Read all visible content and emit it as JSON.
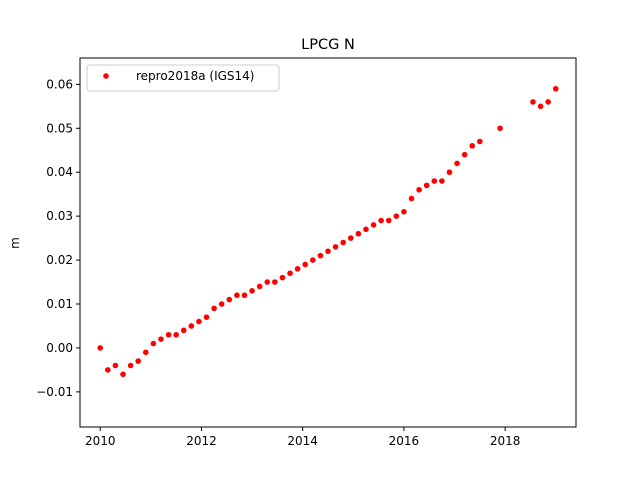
{
  "chart_data": {
    "type": "scatter",
    "title": "LPCG N",
    "xlabel": "",
    "ylabel": "m",
    "xlim": [
      2009.6,
      2019.4
    ],
    "ylim": [
      -0.018,
      0.066
    ],
    "xticks": [
      2010,
      2012,
      2014,
      2016,
      2018
    ],
    "xtick_labels": [
      "2010",
      "2012",
      "2014",
      "2016",
      "2018"
    ],
    "yticks": [
      -0.01,
      0.0,
      0.01,
      0.02,
      0.03,
      0.04,
      0.05,
      0.06
    ],
    "ytick_labels": [
      "−0.01",
      "0.00",
      "0.01",
      "0.02",
      "0.03",
      "0.04",
      "0.05",
      "0.06"
    ],
    "grid": false,
    "legend_position": "upper-left",
    "series": [
      {
        "name": "repro2018a (IGS14)",
        "color": "#ff0000",
        "marker": "circle",
        "x": [
          2010.0,
          2010.15,
          2010.3,
          2010.45,
          2010.6,
          2010.75,
          2010.9,
          2011.05,
          2011.2,
          2011.35,
          2011.5,
          2011.65,
          2011.8,
          2011.95,
          2012.1,
          2012.25,
          2012.4,
          2012.55,
          2012.7,
          2012.85,
          2013.0,
          2013.15,
          2013.3,
          2013.45,
          2013.6,
          2013.75,
          2013.9,
          2014.05,
          2014.2,
          2014.35,
          2014.5,
          2014.65,
          2014.8,
          2014.95,
          2015.1,
          2015.25,
          2015.4,
          2015.55,
          2015.7,
          2015.85,
          2016.0,
          2016.15,
          2016.3,
          2016.45,
          2016.6,
          2016.75,
          2016.9,
          2017.05,
          2017.2,
          2017.35,
          2017.5,
          2017.9,
          2018.55,
          2018.7,
          2018.85,
          2019.0
        ],
        "y": [
          0.0,
          -0.005,
          -0.004,
          -0.006,
          -0.004,
          -0.003,
          -0.001,
          0.001,
          0.002,
          0.003,
          0.003,
          0.004,
          0.005,
          0.006,
          0.007,
          0.009,
          0.01,
          0.011,
          0.012,
          0.012,
          0.013,
          0.014,
          0.015,
          0.015,
          0.016,
          0.017,
          0.018,
          0.019,
          0.02,
          0.021,
          0.022,
          0.023,
          0.024,
          0.025,
          0.026,
          0.027,
          0.028,
          0.029,
          0.029,
          0.03,
          0.031,
          0.034,
          0.036,
          0.037,
          0.038,
          0.038,
          0.04,
          0.042,
          0.044,
          0.046,
          0.047,
          0.05,
          0.056,
          0.055,
          0.056,
          0.059
        ]
      }
    ]
  }
}
